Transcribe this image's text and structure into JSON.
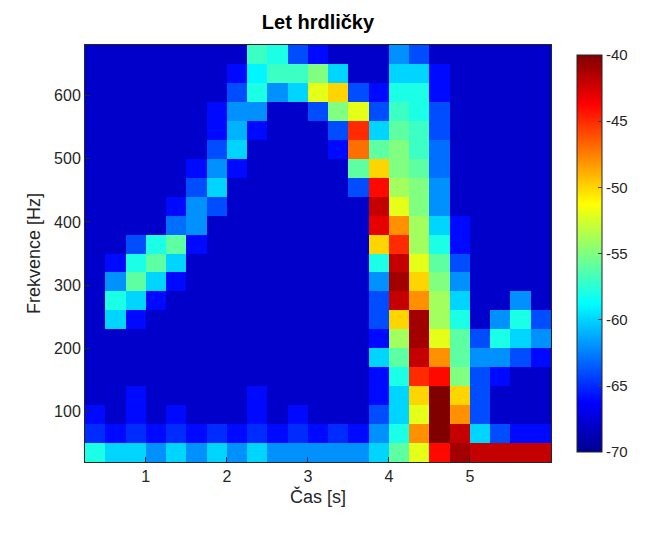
{
  "chart_data": {
    "type": "heatmap",
    "title": "Let hrdličky",
    "xlabel": "Čas [s]",
    "ylabel": "Frekvence [Hz]",
    "color": "jet",
    "x": [
      0.375,
      0.625,
      0.875,
      1.125,
      1.375,
      1.625,
      1.875,
      2.125,
      2.375,
      2.625,
      2.875,
      3.125,
      3.375,
      3.625,
      3.875,
      4.125,
      4.375,
      4.625,
      4.875,
      5.125,
      5.375,
      5.625,
      5.875
    ],
    "y": [
      35,
      65,
      95,
      125,
      155,
      185,
      215,
      245,
      275,
      305,
      335,
      365,
      395,
      425,
      455,
      485,
      515,
      545,
      575,
      605,
      635,
      665
    ],
    "xlim": [
      0.25,
      6.0
    ],
    "ylim": [
      20,
      680
    ],
    "xticks": [
      1,
      2,
      3,
      4,
      5
    ],
    "yticks": [
      100,
      200,
      300,
      400,
      500,
      600
    ],
    "zlim": [
      -70,
      -40
    ],
    "zticks": [
      -70,
      -65,
      -60,
      -55,
      -50,
      -45,
      -40
    ],
    "cells": [
      [
        -58,
        -60,
        -60,
        -62,
        -60,
        -62,
        -60,
        -62,
        -60,
        -62,
        -62,
        -62,
        -62,
        -62,
        -60,
        -56,
        -52,
        -44,
        -41,
        -42,
        -42,
        -42,
        -42
      ],
      [
        -65,
        -66,
        -65,
        -66,
        -65,
        -66,
        -65,
        -66,
        -65,
        -66,
        -65,
        -66,
        -65,
        -66,
        -62,
        -58,
        -48,
        -40,
        -42,
        -60,
        -64,
        -66,
        -66
      ],
      [
        -66,
        -68,
        -66,
        -68,
        -66,
        -68,
        -68,
        -68,
        -66,
        -68,
        -66,
        -68,
        -68,
        -68,
        -64,
        -60,
        -52,
        -40,
        -48,
        -64,
        -68,
        -68,
        -68
      ],
      [
        -68,
        -68,
        -66,
        -68,
        -68,
        -68,
        -68,
        -68,
        -66,
        -68,
        -68,
        -68,
        -68,
        -68,
        -66,
        -60,
        -50,
        -40,
        -50,
        -64,
        -68,
        -68,
        -68
      ],
      [
        -68,
        -68,
        -68,
        -68,
        -68,
        -68,
        -68,
        -68,
        -68,
        -68,
        -68,
        -68,
        -68,
        -68,
        -66,
        -58,
        -45,
        -44,
        -55,
        -64,
        -66,
        -68,
        -68
      ],
      [
        -68,
        -68,
        -68,
        -68,
        -68,
        -68,
        -68,
        -68,
        -68,
        -68,
        -68,
        -68,
        -68,
        -68,
        -60,
        -56,
        -42,
        -48,
        -56,
        -62,
        -62,
        -64,
        -66
      ],
      [
        -68,
        -68,
        -68,
        -68,
        -68,
        -68,
        -68,
        -68,
        -68,
        -68,
        -68,
        -68,
        -68,
        -68,
        -66,
        -54,
        -41,
        -52,
        -56,
        -64,
        -58,
        -60,
        -62
      ],
      [
        -68,
        -60,
        -66,
        -68,
        -68,
        -68,
        -68,
        -68,
        -68,
        -68,
        -68,
        -68,
        -68,
        -68,
        -64,
        -50,
        -41,
        -54,
        -58,
        -68,
        -62,
        -58,
        -64
      ],
      [
        -68,
        -58,
        -60,
        -66,
        -68,
        -68,
        -68,
        -68,
        -68,
        -68,
        -68,
        -68,
        -68,
        -68,
        -64,
        -42,
        -48,
        -54,
        -60,
        -68,
        -68,
        -62,
        -68
      ],
      [
        -68,
        -62,
        -56,
        -60,
        -66,
        -68,
        -68,
        -68,
        -68,
        -68,
        -68,
        -68,
        -68,
        -68,
        -62,
        -41,
        -50,
        -55,
        -62,
        -68,
        -68,
        -68,
        -68
      ],
      [
        -68,
        -66,
        -58,
        -56,
        -60,
        -68,
        -68,
        -68,
        -68,
        -68,
        -68,
        -68,
        -68,
        -68,
        -58,
        -42,
        -52,
        -56,
        -64,
        -68,
        -68,
        -68,
        -68
      ],
      [
        -68,
        -68,
        -64,
        -58,
        -56,
        -66,
        -68,
        -68,
        -68,
        -68,
        -68,
        -68,
        -68,
        -68,
        -50,
        -45,
        -54,
        -58,
        -66,
        -68,
        -68,
        -68,
        -68
      ],
      [
        -68,
        -68,
        -68,
        -68,
        -63,
        -62,
        -68,
        -68,
        -68,
        -68,
        -68,
        -68,
        -68,
        -68,
        -43,
        -48,
        -54,
        -60,
        -66,
        -68,
        -68,
        -68,
        -68
      ],
      [
        -68,
        -68,
        -68,
        -68,
        -66,
        -62,
        -64,
        -68,
        -68,
        -68,
        -68,
        -68,
        -68,
        -68,
        -42,
        -52,
        -55,
        -62,
        -68,
        -68,
        -68,
        -68,
        -68
      ],
      [
        -68,
        -68,
        -68,
        -68,
        -68,
        -64,
        -60,
        -68,
        -68,
        -68,
        -68,
        -68,
        -68,
        -64,
        -44,
        -54,
        -55,
        -62,
        -68,
        -68,
        -68,
        -68,
        -68
      ],
      [
        -68,
        -68,
        -68,
        -68,
        -68,
        -66,
        -62,
        -66,
        -68,
        -68,
        -68,
        -68,
        -68,
        -56,
        -50,
        -55,
        -56,
        -63,
        -68,
        -68,
        -68,
        -68,
        -68
      ],
      [
        -68,
        -68,
        -68,
        -68,
        -68,
        -68,
        -64,
        -60,
        -68,
        -68,
        -68,
        -68,
        -66,
        -47,
        -56,
        -55,
        -57,
        -63,
        -68,
        -68,
        -68,
        -68,
        -68
      ],
      [
        -68,
        -68,
        -68,
        -68,
        -68,
        -68,
        -66,
        -61,
        -66,
        -68,
        -68,
        -68,
        -64,
        -45,
        -60,
        -56,
        -57,
        -64,
        -68,
        -68,
        -68,
        -68,
        -68
      ],
      [
        -68,
        -68,
        -68,
        -68,
        -68,
        -68,
        -66,
        -62,
        -62,
        -68,
        -68,
        -64,
        -55,
        -52,
        -64,
        -57,
        -58,
        -64,
        -68,
        -68,
        -68,
        -68,
        -68
      ],
      [
        -68,
        -68,
        -68,
        -68,
        -68,
        -68,
        -68,
        -64,
        -58,
        -62,
        -60,
        -52,
        -50,
        -64,
        -66,
        -58,
        -58,
        -66,
        -68,
        -68,
        -68,
        -68,
        -68
      ],
      [
        -68,
        -68,
        -68,
        -68,
        -68,
        -68,
        -68,
        -66,
        -59,
        -57,
        -57,
        -55,
        -60,
        -68,
        -68,
        -60,
        -60,
        -66,
        -68,
        -68,
        -68,
        -68,
        -68
      ],
      [
        -68,
        -68,
        -68,
        -68,
        -68,
        -68,
        -68,
        -68,
        -57,
        -58,
        -64,
        -66,
        -68,
        -68,
        -68,
        -62,
        -64,
        -68,
        -68,
        -68,
        -68,
        -68,
        -68
      ]
    ]
  }
}
